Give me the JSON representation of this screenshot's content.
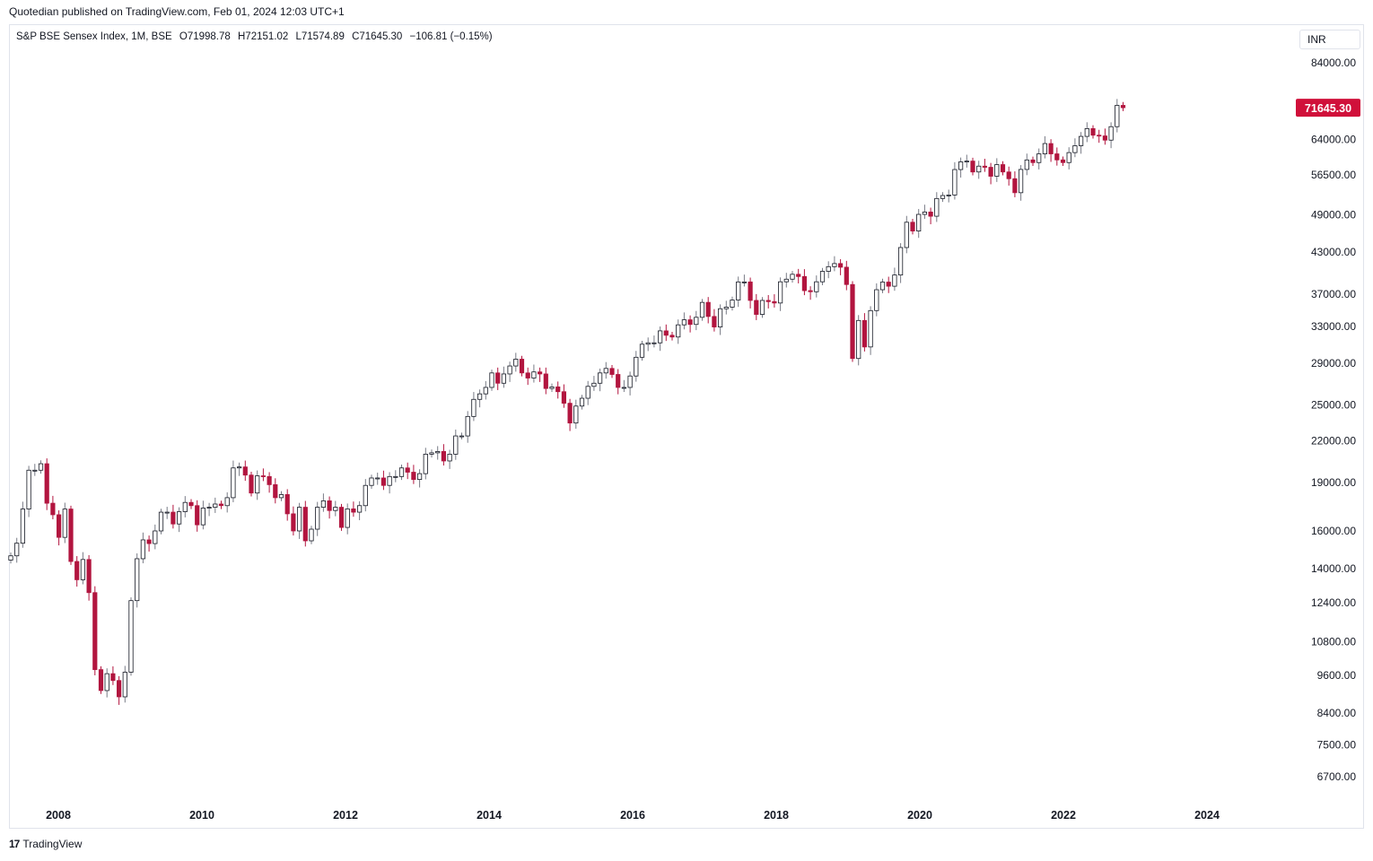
{
  "header": {
    "published": "Quotedian published on TradingView.com, Feb 01, 2024 12:03 UTC+1"
  },
  "legend": {
    "symbol": "S&P BSE Sensex Index, 1M, BSE",
    "open": "O71998.78",
    "high": "H72151.02",
    "low": "L71574.89",
    "close": "C71645.30",
    "change": "−106.81 (−0.15%)"
  },
  "currency_button": "INR",
  "footer": {
    "brand": "TradingView",
    "logo_text": "17"
  },
  "colors": {
    "up": "#787b86",
    "down": "#b2153f",
    "price_label_bg": "#d0103a",
    "axis_text": "#131722"
  },
  "chart_data": {
    "type": "candlestick",
    "title": "S&P BSE Sensex Index, 1M, BSE",
    "y_scale": "log",
    "ylim": [
      6200,
      92000
    ],
    "y_ticks": [
      84000,
      64000,
      56500,
      49000,
      43000,
      37000,
      33000,
      29000,
      25000,
      22000,
      19000,
      16000,
      14000,
      12400,
      10800,
      9600,
      8400,
      7500,
      6700
    ],
    "y_tick_labels": [
      "84000.00",
      "64000.00",
      "56500.00",
      "49000.00",
      "43000.00",
      "37000.00",
      "33000.00",
      "29000.00",
      "25000.00",
      "22000.00",
      "19000.00",
      "16000.00",
      "14000.00",
      "12400.00",
      "10800.00",
      "9600.00",
      "8400.00",
      "7500.00",
      "6700.00"
    ],
    "x_tick_labels": [
      "2008",
      "2010",
      "2012",
      "2014",
      "2016",
      "2018",
      "2020",
      "2022",
      "2024"
    ],
    "last_price_label": "71645.30",
    "last_price": 71645.3,
    "closes": [
      14650,
      15320,
      17290,
      19840,
      19840,
      20300,
      17650,
      16945,
      15640,
      17290,
      14360,
      13460,
      14460,
      12860,
      9790,
      9090,
      9650,
      9420,
      8890,
      9700,
      12500,
      14500,
      15500,
      15300,
      16000,
      17100,
      17100,
      16400,
      17130,
      17700,
      17500,
      16350,
      17350,
      17400,
      17600,
      17500,
      18000,
      20000,
      20070,
      19500,
      18300,
      19450,
      19400,
      18850,
      18000,
      18200,
      17000,
      16000,
      17400,
      15450,
      16100,
      17400,
      17800,
      17200,
      17400,
      16200,
      17300,
      17100,
      17500,
      18800,
      19300,
      19300,
      18800,
      19400,
      19400,
      20000,
      19700,
      19200,
      19600,
      21000,
      21100,
      21200,
      20500,
      21000,
      22400,
      22400,
      24000,
      25500,
      26000,
      26600,
      28000,
      27000,
      27900,
      28700,
      29400,
      28000,
      27500,
      28100,
      27900,
      26500,
      26650,
      26200,
      25150,
      23450,
      24900,
      25600,
      26700,
      27000,
      28000,
      28450,
      27850,
      26600,
      26600,
      27700,
      29600,
      31000,
      31150,
      31150,
      32500,
      32000,
      31800,
      33200,
      33800,
      33250,
      34100,
      35950,
      34200,
      32950,
      35150,
      35350,
      36250,
      38650,
      38650,
      36200,
      34450,
      36200,
      36050,
      35870,
      38670,
      39030,
      39710,
      39400,
      37480,
      37330,
      38670,
      40130,
      40800,
      41250,
      40720,
      38300,
      29470,
      33720,
      30700,
      34920,
      37600,
      38630,
      38070,
      39610,
      43660,
      47750,
      46290,
      49100,
      49510,
      48780,
      51940,
      52490,
      52590,
      57550,
      59130,
      59300,
      57060,
      58250,
      58010,
      56200,
      58570,
      57060,
      55710,
      53020,
      57570,
      59540,
      58990,
      60840,
      63100,
      60840,
      59550,
      58990,
      61110,
      62620,
      64720,
      66530,
      65000,
      64830,
      63870,
      66990,
      72240,
      71645
    ]
  }
}
